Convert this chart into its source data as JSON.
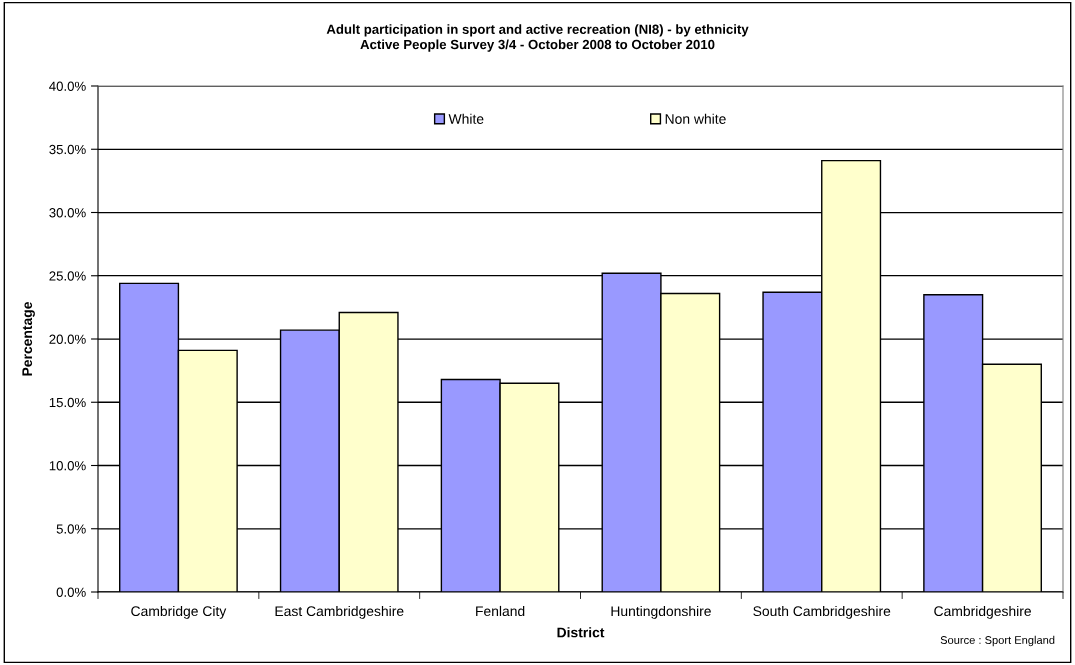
{
  "chart_data": {
    "type": "bar",
    "title": "Adult participation in sport and active recreation (NI8) - by ethnicity\nActive People Survey 3/4 - October 2008 to October 2010",
    "xlabel": "District",
    "ylabel": "Percentage",
    "categories": [
      "Cambridge City",
      "East Cambridgeshire",
      "Fenland",
      "Huntingdonshire",
      "South Cambridgeshire",
      "Cambridgeshire"
    ],
    "series": [
      {
        "name": "White",
        "color": "#9999ff",
        "values": [
          24.4,
          20.7,
          16.8,
          25.2,
          23.7,
          23.5
        ]
      },
      {
        "name": "Non white",
        "color": "#ffffcc",
        "values": [
          19.1,
          22.1,
          16.5,
          23.6,
          34.1,
          18.0
        ]
      }
    ],
    "ylim": [
      0,
      40
    ],
    "yticks": [
      {
        "value": 0,
        "label": "0.0%"
      },
      {
        "value": 5,
        "label": "5.0%"
      },
      {
        "value": 10,
        "label": "10.0%"
      },
      {
        "value": 15,
        "label": "15.0%"
      },
      {
        "value": 20,
        "label": "20.0%"
      },
      {
        "value": 25,
        "label": "25.0%"
      },
      {
        "value": 30,
        "label": "30.0%"
      },
      {
        "value": 35,
        "label": "35.0%"
      },
      {
        "value": 40,
        "label": "40.0%"
      }
    ],
    "grid": "y",
    "legend": "top",
    "annotations": [
      "Source : Sport England"
    ]
  }
}
